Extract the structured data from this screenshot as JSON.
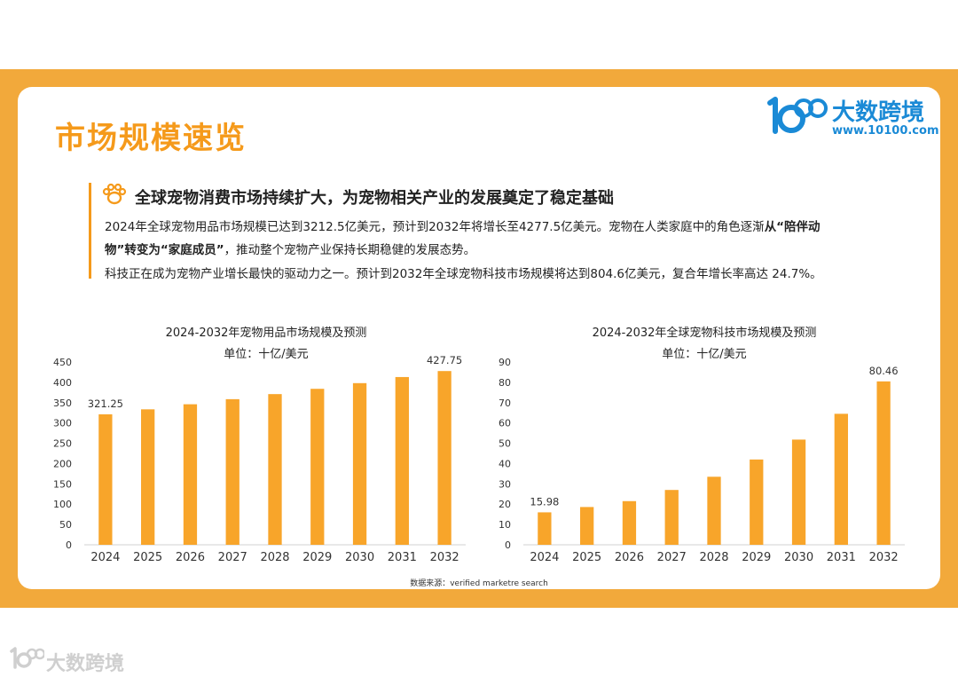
{
  "page": {
    "title": "市场规模速览",
    "brand": {
      "name": "大数跨境",
      "url": "www.10100.com",
      "color": "#1a8ad6"
    },
    "headline": "全球宠物消费市场持续扩大，为宠物相关产业的发展奠定了稳定基础",
    "para1_a": "2024年全球宠物用品市场规模已达到3212.5亿美元，预计到2032年将增长至4277.5亿美元。宠物在人类家庭中的角色逐渐",
    "para1_b": "从“陪伴动",
    "para2_a": "物”转变为“家庭成员”",
    "para2_b": "，推动整个宠物产业保持长期稳健的发展态势。",
    "para3": "科技正在成为宠物产业增长最快的驱动力之一。预计到2032年全球宠物科技市场规模将达到804.6亿美元，复合年增长率高达 24.7%。",
    "source": "数据来源：verified marketre search",
    "watermark": "大数跨境",
    "accent_color": "#f59a1b",
    "band_color": "#f2a93b",
    "bar_color": "#f8a52a"
  },
  "chart_data": [
    {
      "type": "bar",
      "title": "2024-2032年宠物用品市场规模及预测",
      "subtitle": "单位：十亿/美元",
      "categories": [
        "2024",
        "2025",
        "2026",
        "2027",
        "2028",
        "2029",
        "2030",
        "2031",
        "2032"
      ],
      "values": [
        321.25,
        333.5,
        346,
        358.5,
        371,
        384,
        398,
        413,
        427.75
      ],
      "data_labels": [
        "321.25",
        "",
        "",
        "",
        "",
        "",
        "",
        "",
        "427.75"
      ],
      "ylim": [
        0,
        450
      ],
      "yticks": [
        0,
        50,
        100,
        150,
        200,
        250,
        300,
        350,
        400,
        450
      ],
      "grid": false
    },
    {
      "type": "bar",
      "title": "2024-2032年全球宠物科技市场规模及预测",
      "subtitle": "单位：十亿/美元",
      "categories": [
        "2024",
        "2025",
        "2026",
        "2027",
        "2028",
        "2029",
        "2030",
        "2031",
        "2032"
      ],
      "values": [
        15.98,
        18.6,
        21.5,
        27,
        33.5,
        42,
        51.8,
        64.5,
        80.46
      ],
      "data_labels": [
        "15.98",
        "",
        "",
        "",
        "",
        "",
        "",
        "",
        "80.46"
      ],
      "ylim": [
        0,
        90
      ],
      "yticks": [
        0,
        10,
        20,
        30,
        40,
        50,
        60,
        70,
        80,
        90
      ],
      "grid": false
    }
  ]
}
